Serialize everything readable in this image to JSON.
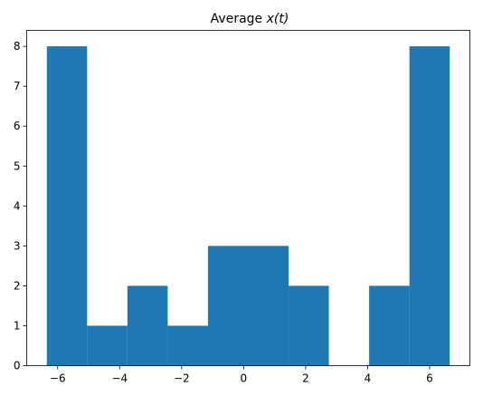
{
  "chart_data": {
    "type": "bar",
    "title_prefix": "Average ",
    "title_math": "x(t)",
    "xlabel": "",
    "ylabel": "",
    "bins": [
      {
        "x0": -6.35,
        "x1": -5.05,
        "count": 8
      },
      {
        "x0": -5.05,
        "x1": -3.75,
        "count": 1
      },
      {
        "x0": -3.75,
        "x1": -2.45,
        "count": 2
      },
      {
        "x0": -2.45,
        "x1": -1.15,
        "count": 1
      },
      {
        "x0": -1.15,
        "x1": 0.15,
        "count": 3
      },
      {
        "x0": 0.15,
        "x1": 1.45,
        "count": 3
      },
      {
        "x0": 1.45,
        "x1": 2.75,
        "count": 2
      },
      {
        "x0": 2.75,
        "x1": 4.05,
        "count": 0
      },
      {
        "x0": 4.05,
        "x1": 5.35,
        "count": 2
      },
      {
        "x0": 5.35,
        "x1": 6.65,
        "count": 8
      }
    ],
    "xlim": [
      -7.0,
      7.3
    ],
    "ylim": [
      0,
      8.4
    ],
    "xticks": [
      -6,
      -4,
      -2,
      0,
      2,
      4,
      6
    ],
    "xtick_labels": [
      "−6",
      "−4",
      "−2",
      "0",
      "2",
      "4",
      "6"
    ],
    "yticks": [
      0,
      1,
      2,
      3,
      4,
      5,
      6,
      7,
      8
    ],
    "ytick_labels": [
      "0",
      "1",
      "2",
      "3",
      "4",
      "5",
      "6",
      "7",
      "8"
    ],
    "bar_color": "#1f77b4",
    "grid": false,
    "legend": "none"
  }
}
